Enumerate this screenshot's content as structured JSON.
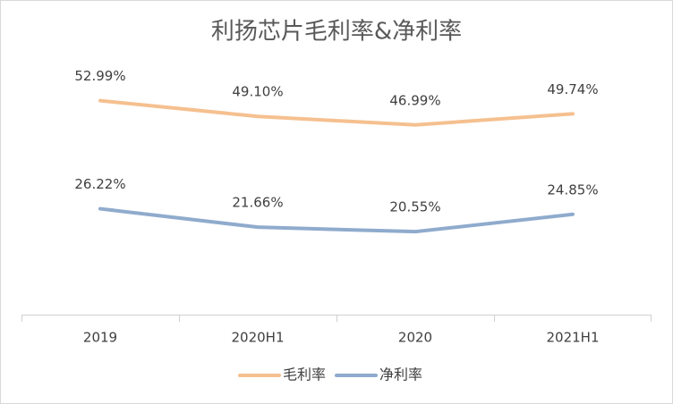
{
  "chart_data": {
    "type": "line",
    "title": "利扬芯片毛利率&净利率",
    "categories": [
      "2019",
      "2020H1",
      "2020",
      "2021H1"
    ],
    "series": [
      {
        "name": "毛利率",
        "color": "#f5c08f",
        "values": [
          52.99,
          49.1,
          46.99,
          49.74
        ],
        "value_labels": [
          "52.99%",
          "49.10%",
          "46.99%",
          "49.74%"
        ]
      },
      {
        "name": "净利率",
        "color": "#8fabcd",
        "values": [
          26.22,
          21.66,
          20.55,
          24.85
        ],
        "value_labels": [
          "26.22%",
          "21.66%",
          "20.55%",
          "24.85%"
        ]
      }
    ],
    "ylim": [
      0,
      60
    ],
    "legend": "bottom"
  }
}
